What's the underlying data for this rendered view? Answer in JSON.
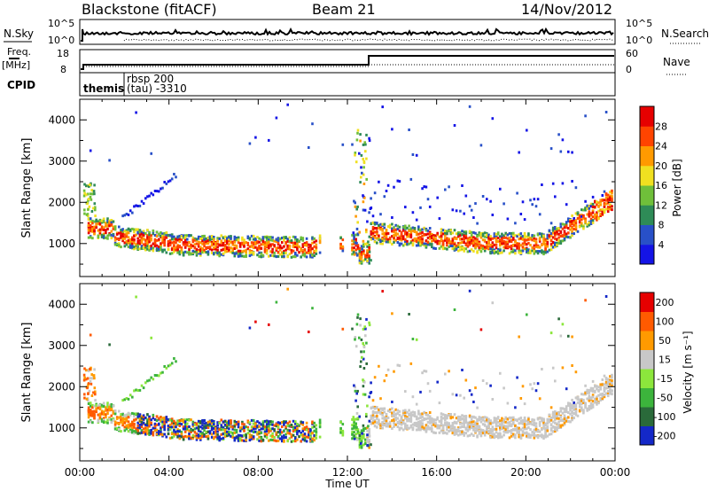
{
  "header": {
    "title": "Blackstone (fitACF)",
    "beam": "Beam 21",
    "date": "14/Nov/2012"
  },
  "panels": {
    "nsky_label": "N.Sky",
    "nsearch_label": "N.Search",
    "freq_label": "Freq.",
    "freq_unit": "[MHz]",
    "nave_label": "Nave",
    "cpid_label": "CPID",
    "nsky_ticks": [
      "10^5",
      "10^0"
    ],
    "nsearch_ticks": [
      "10^5",
      "10^0"
    ],
    "freq_ticks": [
      "18",
      "8"
    ],
    "nave_ticks": [
      "60",
      "0"
    ],
    "cpid_segments": [
      {
        "text": "themis",
        "bold": true
      },
      {
        "text": "rbsp 200",
        "bold": false
      },
      {
        "text": "(tau) -3310",
        "bold": false
      }
    ]
  },
  "chart_data": [
    {
      "type": "heatmap",
      "name": "power",
      "ylabel": "Slant Range [km]",
      "ylim": [
        200,
        4500
      ],
      "yticks": [
        1000,
        2000,
        3000,
        4000
      ],
      "colorbar_label": "Power [dB]",
      "colorbar_ticks": [
        "28",
        "24",
        "20",
        "16",
        "12",
        "8",
        "4"
      ],
      "colors": [
        "#1414e6",
        "#2850c8",
        "#2e8b57",
        "#6fbf3a",
        "#f0e020",
        "#ff9a00",
        "#ff4400",
        "#e60000"
      ]
    },
    {
      "type": "heatmap",
      "name": "velocity",
      "ylabel": "Slant Range [km]",
      "ylim": [
        200,
        4500
      ],
      "yticks": [
        1000,
        2000,
        3000,
        4000
      ],
      "colorbar_label": "Velocity [m s⁻¹]",
      "colorbar_ticks": [
        "200",
        "100",
        "50",
        "15",
        "-15",
        "-50",
        "-100",
        "-200"
      ],
      "colors": [
        "#1428c8",
        "#2a6a3a",
        "#3cb43c",
        "#8ce63c",
        "#c8c8c8",
        "#ff9a00",
        "#ff5a00",
        "#e60000"
      ]
    }
  ],
  "time_axis": {
    "xlabel": "Time UT",
    "tick_labels": [
      "00:00",
      "04:00",
      "08:00",
      "12:00",
      "16:00",
      "20:00",
      "00:00"
    ],
    "xlim_hours": [
      0,
      24
    ]
  }
}
